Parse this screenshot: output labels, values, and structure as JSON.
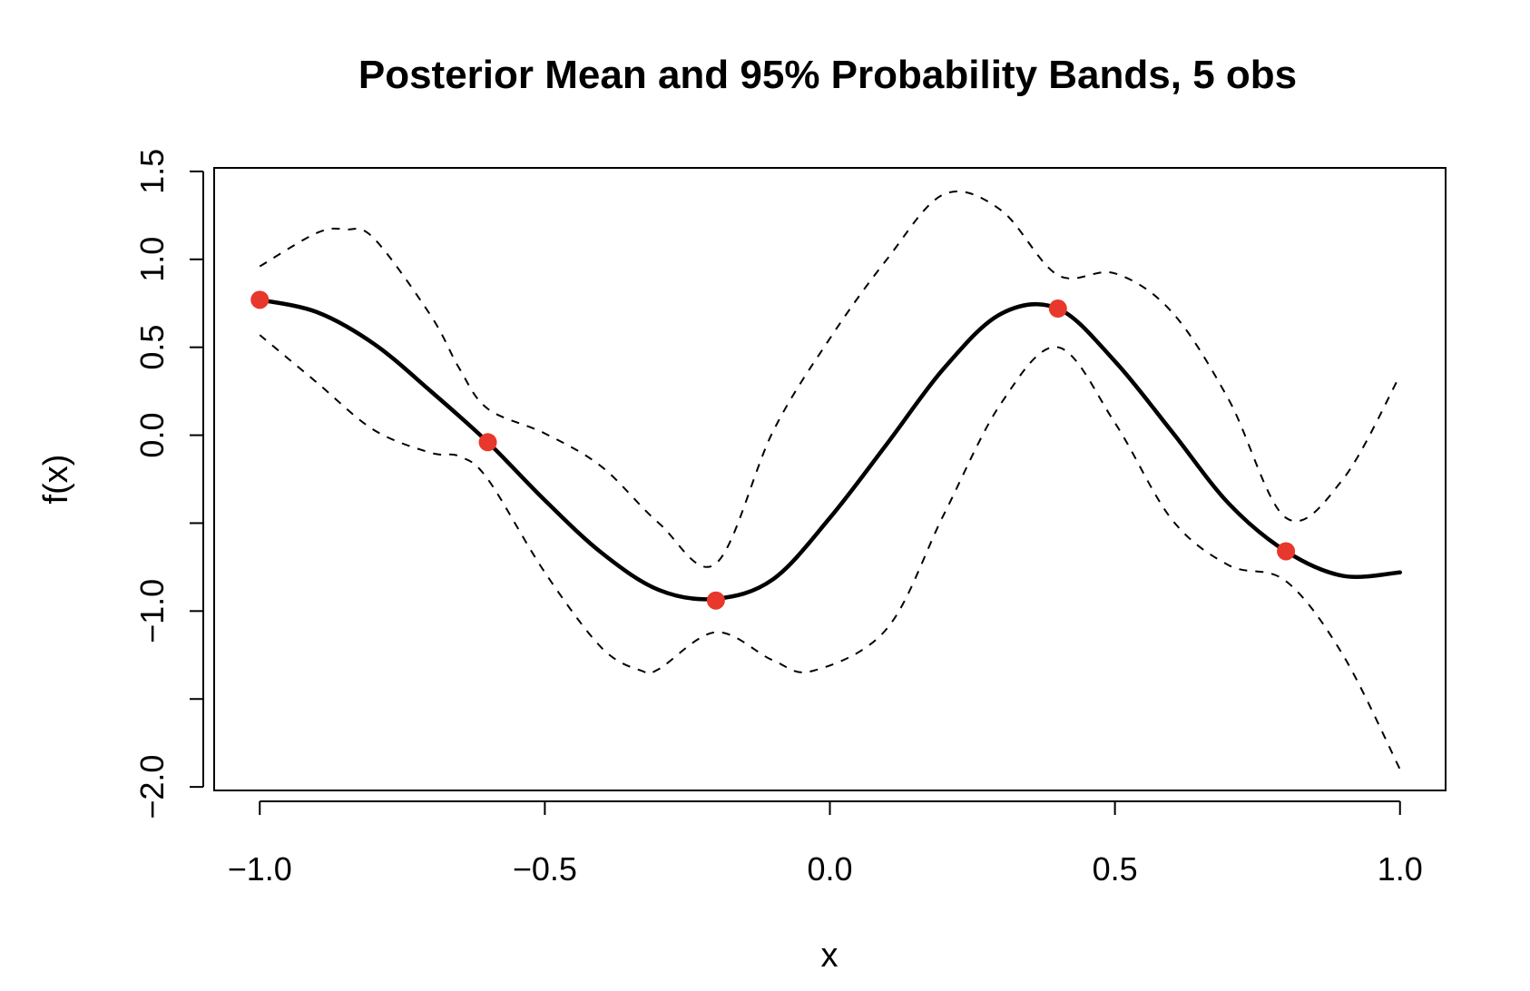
{
  "chart_data": {
    "type": "line",
    "title": "Posterior Mean and 95% Probability Bands, 5 obs",
    "xlabel": "x",
    "ylabel": "f(x)",
    "xlim": [
      -1.08,
      1.08
    ],
    "ylim": [
      -2.02,
      1.52
    ],
    "x_ticks": [
      -1.0,
      -0.5,
      0.0,
      0.5,
      1.0
    ],
    "x_tick_labels": [
      "−1.0",
      "−0.5",
      "0.0",
      "0.5",
      "1.0"
    ],
    "y_ticks": [
      -2.0,
      -1.5,
      -1.0,
      -0.5,
      0.0,
      0.5,
      1.0,
      1.5
    ],
    "y_tick_labels": [
      "−2.0",
      "",
      "−1.0",
      "",
      "0.0",
      "0.5",
      "1.0",
      "1.5"
    ],
    "colors": {
      "observation": "#e8372b",
      "mean": "#000000",
      "band": "#000000"
    },
    "series": [
      {
        "role": "mean",
        "x": [
          -1.0,
          -0.9,
          -0.8,
          -0.7,
          -0.6,
          -0.5,
          -0.4,
          -0.3,
          -0.2,
          -0.1,
          0.0,
          0.1,
          0.2,
          0.3,
          0.4,
          0.5,
          0.6,
          0.7,
          0.8,
          0.9,
          1.0
        ],
        "y": [
          0.77,
          0.7,
          0.52,
          0.25,
          -0.04,
          -0.37,
          -0.67,
          -0.88,
          -0.93,
          -0.82,
          -0.47,
          -0.05,
          0.38,
          0.69,
          0.72,
          0.42,
          0.02,
          -0.39,
          -0.66,
          -0.8,
          -0.78
        ]
      },
      {
        "role": "upper-band",
        "x": [
          -1.0,
          -0.9,
          -0.85,
          -0.8,
          -0.7,
          -0.65,
          -0.6,
          -0.5,
          -0.4,
          -0.3,
          -0.2,
          -0.1,
          0.0,
          0.1,
          0.2,
          0.3,
          0.4,
          0.5,
          0.6,
          0.7,
          0.8,
          0.9,
          1.0
        ],
        "y": [
          0.96,
          1.15,
          1.17,
          1.12,
          0.68,
          0.38,
          0.15,
          0.01,
          -0.18,
          -0.5,
          -0.73,
          0.02,
          0.55,
          1.0,
          1.37,
          1.28,
          0.91,
          0.92,
          0.7,
          0.2,
          -0.47,
          -0.25,
          0.34
        ]
      },
      {
        "role": "lower-band",
        "x": [
          -1.0,
          -0.9,
          -0.8,
          -0.7,
          -0.65,
          -0.6,
          -0.5,
          -0.4,
          -0.33,
          -0.3,
          -0.2,
          -0.1,
          -0.03,
          0.1,
          0.2,
          0.3,
          0.4,
          0.5,
          0.6,
          0.7,
          0.8,
          0.9,
          1.0
        ],
        "y": [
          0.57,
          0.3,
          0.03,
          -0.1,
          -0.12,
          -0.25,
          -0.78,
          -1.21,
          -1.34,
          -1.33,
          -1.12,
          -1.28,
          -1.34,
          -1.1,
          -0.45,
          0.18,
          0.5,
          0.07,
          -0.48,
          -0.74,
          -0.83,
          -1.25,
          -1.9
        ]
      }
    ],
    "observations": {
      "x": [
        -1.0,
        -0.6,
        -0.2,
        0.4,
        0.8
      ],
      "y": [
        0.77,
        -0.04,
        -0.94,
        0.72,
        -0.66
      ]
    }
  }
}
